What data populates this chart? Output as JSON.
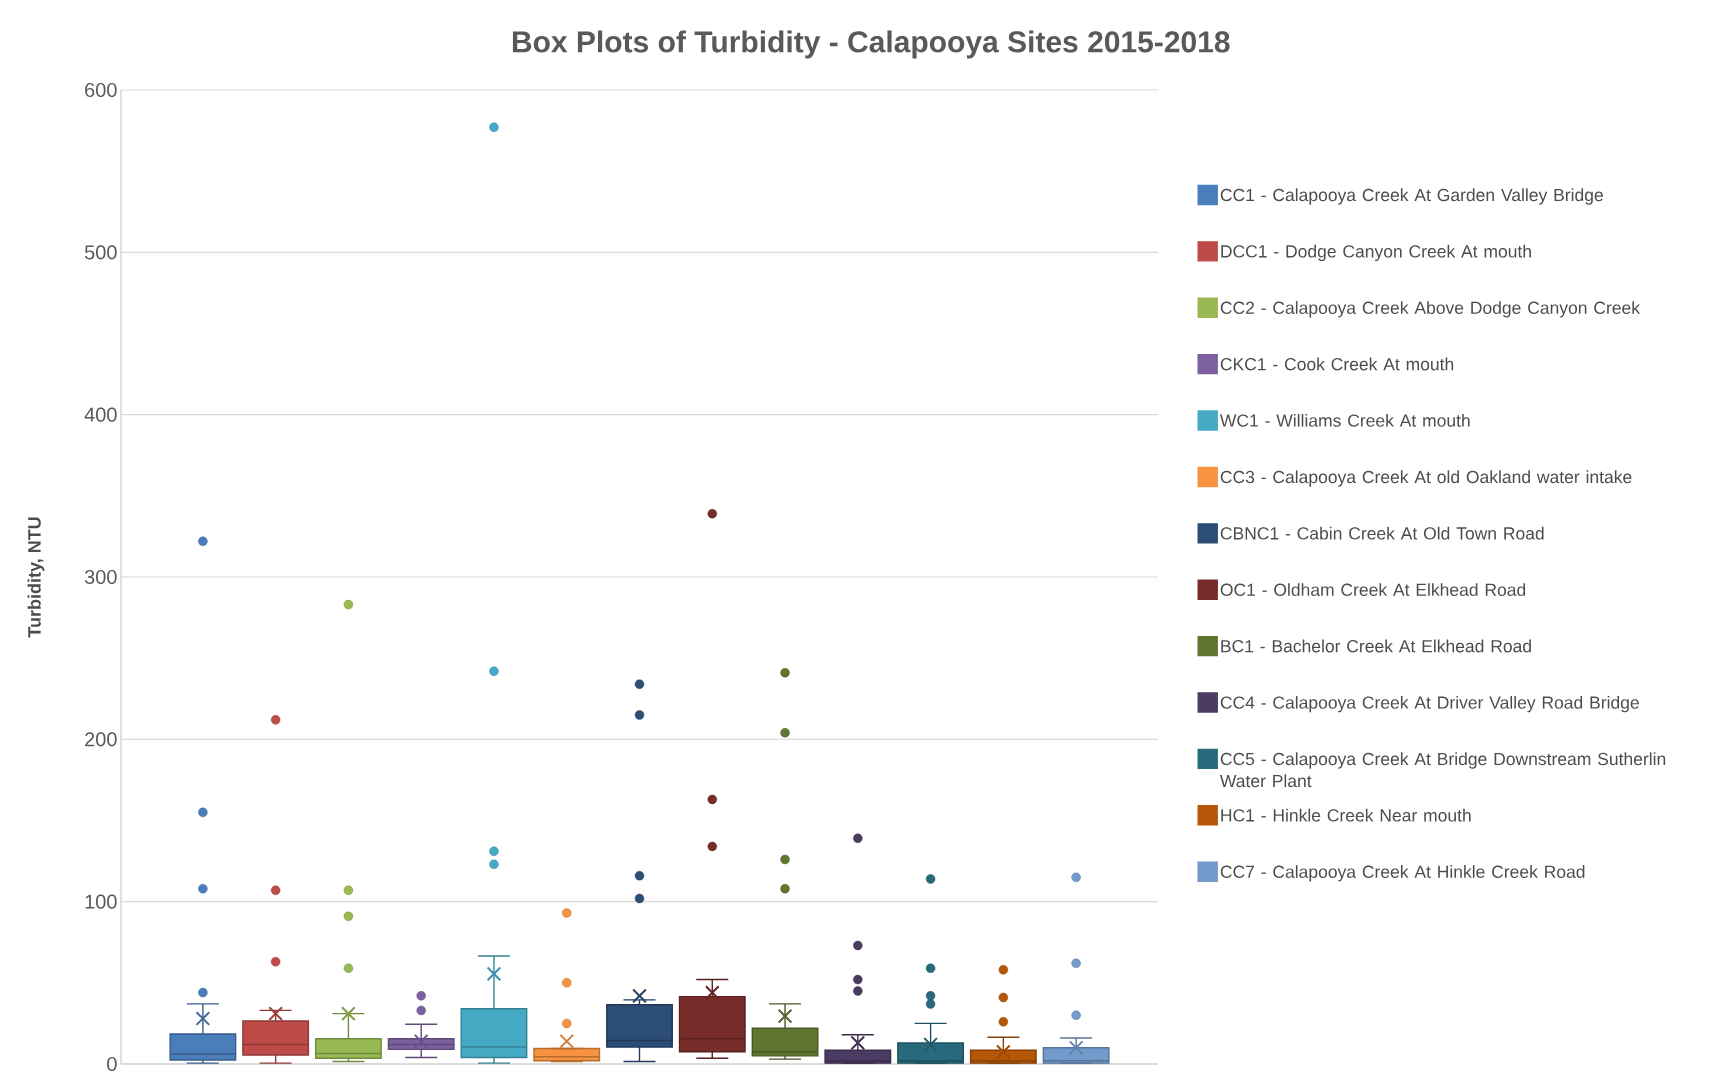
{
  "chart_data": {
    "type": "box",
    "title": "Box Plots of Turbidity - Calapooya Sites 2015-2018",
    "ylabel": "Turbidity, NTU",
    "categories": [
      null
    ],
    "ylim": [
      0,
      600
    ],
    "yticks": [
      0,
      100,
      200,
      300,
      400,
      500,
      600
    ],
    "grid": "y",
    "legend": "right",
    "series": [
      {
        "name": "CC1 - Calapooya Creek At Garden Valley Bridge",
        "color": "#4a7ebb",
        "boxes": [
          {
            "low": 0.5,
            "q1": 2.5,
            "median": 6,
            "q3": 18.5,
            "high": 37,
            "mean": 28,
            "outliers": [
              44,
              108,
              155,
              322
            ]
          }
        ]
      },
      {
        "name": "DCC1 - Dodge Canyon Creek At mouth",
        "color": "#be4b48",
        "boxes": [
          {
            "low": 0.5,
            "q1": 5.5,
            "median": 12,
            "q3": 26.5,
            "high": 33,
            "mean": 31,
            "outliers": [
              63,
              107,
              212
            ]
          }
        ]
      },
      {
        "name": "CC2 - Calapooya Creek Above Dodge Canyon Creek",
        "color": "#98b954",
        "boxes": [
          {
            "low": 1.5,
            "q1": 3.5,
            "median": 6.5,
            "q3": 15.5,
            "high": 31,
            "mean": 31,
            "outliers": [
              59,
              91,
              107,
              283
            ]
          }
        ]
      },
      {
        "name": "CKC1 - Cook Creek At mouth",
        "color": "#7d60a0",
        "boxes": [
          {
            "low": 4,
            "q1": 9,
            "median": 12,
            "q3": 15.5,
            "high": 24.5,
            "mean": 14,
            "outliers": [
              33,
              42
            ]
          }
        ]
      },
      {
        "name": "WC1 - Williams Creek At mouth",
        "color": "#46aac5",
        "boxes": [
          {
            "low": 0.5,
            "q1": 4,
            "median": 10.5,
            "q3": 34,
            "high": 66.5,
            "mean": 55.5,
            "outliers": [
              123,
              131,
              242,
              577
            ]
          }
        ]
      },
      {
        "name": "CC3 - Calapooya Creek At old Oakland water intake",
        "color": "#f69240",
        "boxes": [
          {
            "low": 1.5,
            "q1": 2,
            "median": 4.5,
            "q3": 9.5,
            "high": 9.5,
            "mean": 14,
            "outliers": [
              25,
              50,
              93
            ]
          }
        ]
      },
      {
        "name": "CBNC1 - Cabin Creek At Old Town Road",
        "color": "#2c4d75",
        "boxes": [
          {
            "low": 1.5,
            "q1": 10.5,
            "median": 14.5,
            "q3": 36.5,
            "high": 39.5,
            "mean": 42,
            "outliers": [
              102,
              116,
              215,
              234
            ]
          }
        ]
      },
      {
        "name": "OC1 - Oldham Creek At Elkhead Road",
        "color": "#772c2a",
        "boxes": [
          {
            "low": 3.5,
            "q1": 7.5,
            "median": 15.5,
            "q3": 41.5,
            "high": 52,
            "mean": 44,
            "outliers": [
              134,
              163,
              339
            ]
          }
        ]
      },
      {
        "name": "BC1 - Bachelor Creek At Elkhead Road",
        "color": "#5f7530",
        "boxes": [
          {
            "low": 3,
            "q1": 5,
            "median": 7.5,
            "q3": 22,
            "high": 37,
            "mean": 29.5,
            "outliers": [
              108,
              126,
              204,
              241
            ]
          }
        ]
      },
      {
        "name": "CC4 - Calapooya Creek At Driver Valley Road Bridge",
        "color": "#4b3b62",
        "boxes": [
          {
            "low": 0.5,
            "q1": 0.5,
            "median": 2,
            "q3": 8.5,
            "high": 18,
            "mean": 13,
            "outliers": [
              45,
              52,
              73,
              139
            ]
          }
        ]
      },
      {
        "name": "CC5 - Calapooya Creek At Bridge Downstream Sutherlin Water Plant",
        "color": "#276a7c",
        "boxes": [
          {
            "low": 0.5,
            "q1": 0.5,
            "median": 2,
            "q3": 13,
            "high": 25,
            "mean": 12,
            "outliers": [
              37,
              42,
              59,
              114
            ]
          }
        ]
      },
      {
        "name": "HC1 - Hinkle Creek Near mouth",
        "color": "#b65708",
        "boxes": [
          {
            "low": 0.5,
            "q1": 0.5,
            "median": 2,
            "q3": 8.5,
            "high": 16.5,
            "mean": 7.5,
            "outliers": [
              26,
              41,
              58
            ]
          }
        ]
      },
      {
        "name": "CC7 - Calapooya Creek At Hinkle Creek Road",
        "color": "#729aca",
        "boxes": [
          {
            "low": 0.5,
            "q1": 0.5,
            "median": 2,
            "q3": 10,
            "high": 16,
            "mean": 10,
            "outliers": [
              30,
              62,
              115
            ]
          }
        ]
      }
    ]
  }
}
